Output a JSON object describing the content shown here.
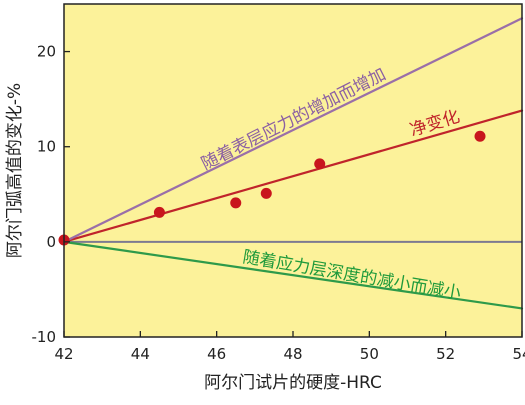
{
  "chart_data": {
    "type": "scatter",
    "xlabel": "阿尔门试片的硬度-HRC",
    "ylabel": "阿尔门弧高值的变化-%",
    "xlim": [
      42,
      54
    ],
    "ylim": [
      -10,
      25
    ],
    "x_ticks": [
      42,
      44,
      46,
      48,
      50,
      52,
      54
    ],
    "y_ticks": [
      -10,
      0,
      10,
      20
    ],
    "grid": false,
    "background_color": "#fcf29a",
    "series": [
      {
        "name": "净变化",
        "kind": "points+fit",
        "color": "#c0242b",
        "marker_color": "#c8161d",
        "points": [
          {
            "x": 42.0,
            "y": 0.2
          },
          {
            "x": 44.5,
            "y": 3.1
          },
          {
            "x": 46.5,
            "y": 4.1
          },
          {
            "x": 47.3,
            "y": 5.1
          },
          {
            "x": 48.7,
            "y": 8.2
          },
          {
            "x": 52.9,
            "y": 11.1
          }
        ],
        "line": [
          {
            "x": 42,
            "y": 0
          },
          {
            "x": 54,
            "y": 13.8
          }
        ]
      },
      {
        "name": "随着表层应力的增加而增加",
        "kind": "line",
        "color": "#9a6fa8",
        "line": [
          {
            "x": 42,
            "y": 0
          },
          {
            "x": 54,
            "y": 23.5
          }
        ]
      },
      {
        "name": "随着应力层深度的减小而减小",
        "kind": "line",
        "color": "#2e9a4a",
        "line": [
          {
            "x": 42,
            "y": 0
          },
          {
            "x": 54,
            "y": -7.0
          }
        ]
      }
    ],
    "zero_line": {
      "y": 0,
      "color": "#7d7a90"
    },
    "annotations": [
      {
        "text": "随着表层应力的增加而增加",
        "color": "#8b5fa3"
      },
      {
        "text": "净变化",
        "color": "#c0242b"
      },
      {
        "text": "随着应力层深度的减小而减小",
        "color": "#1f9a3b"
      }
    ]
  }
}
